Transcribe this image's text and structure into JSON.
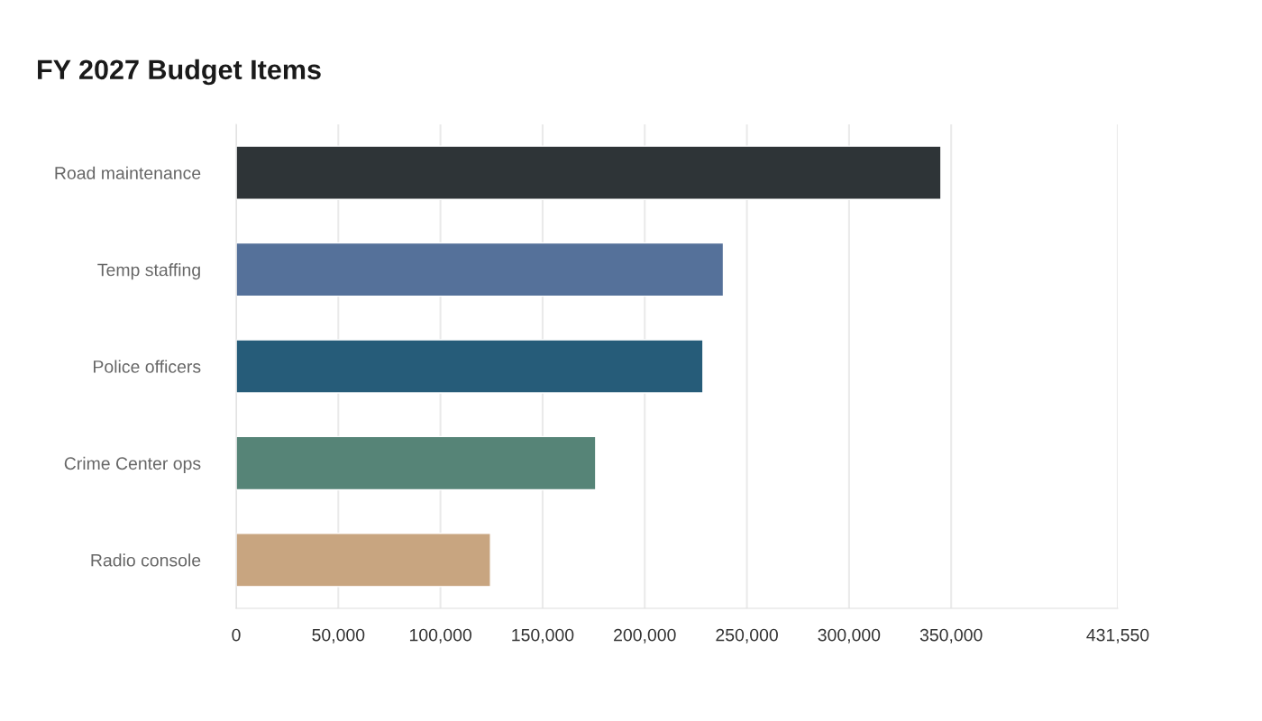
{
  "chart_data": {
    "type": "bar",
    "orientation": "horizontal",
    "title": "FY 2027 Budget Items",
    "categories": [
      "Road maintenance",
      "Temp staffing",
      "Police officers",
      "Crime Center ops",
      "Radio console"
    ],
    "values": [
      345000,
      238500,
      228500,
      176000,
      124500
    ],
    "colors": [
      "#2d3538",
      "#4a6fa5",
      "#186087",
      "#4e8c7a",
      "#d4a574"
    ],
    "xlim": [
      0,
      431550
    ],
    "xticks": [
      {
        "value": 0,
        "label": "0"
      },
      {
        "value": 50000,
        "label": "50,000"
      },
      {
        "value": 100000,
        "label": "100,000"
      },
      {
        "value": 150000,
        "label": "150,000"
      },
      {
        "value": 200000,
        "label": "200,000"
      },
      {
        "value": 250000,
        "label": "250,000"
      },
      {
        "value": 300000,
        "label": "300,000"
      },
      {
        "value": 350000,
        "label": "350,000"
      },
      {
        "value": 431550,
        "label": "431,550"
      }
    ],
    "grid": "x",
    "legend": false
  }
}
